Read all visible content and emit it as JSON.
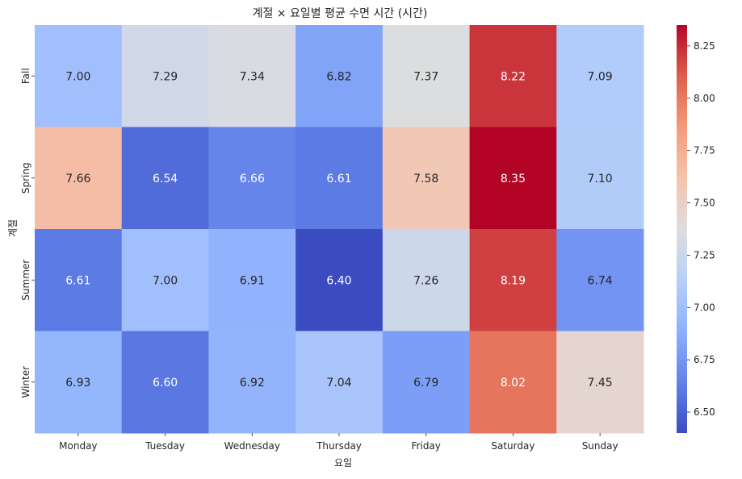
{
  "chart_data": {
    "type": "heatmap",
    "title": "계절 × 요일별 평균 수면 시간 (시간)",
    "xlabel": "요일",
    "ylabel": "계절",
    "x_categories": [
      "Monday",
      "Tuesday",
      "Wednesday",
      "Thursday",
      "Friday",
      "Saturday",
      "Sunday"
    ],
    "y_categories": [
      "Fall",
      "Spring",
      "Summer",
      "Winter"
    ],
    "values": [
      [
        7.0,
        7.29,
        7.34,
        6.82,
        7.37,
        8.22,
        7.09
      ],
      [
        7.66,
        6.54,
        6.66,
        6.61,
        7.58,
        8.35,
        7.1
      ],
      [
        6.61,
        7.0,
        6.91,
        6.4,
        7.26,
        8.19,
        6.74
      ],
      [
        6.93,
        6.6,
        6.92,
        7.04,
        6.79,
        8.02,
        7.45
      ]
    ],
    "cell_labels": [
      [
        "7.00",
        "7.29",
        "7.34",
        "6.82",
        "7.37",
        "8.22",
        "7.09"
      ],
      [
        "7.66",
        "6.54",
        "6.66",
        "6.61",
        "7.58",
        "8.35",
        "7.10"
      ],
      [
        "6.61",
        "7.00",
        "6.91",
        "6.40",
        "7.26",
        "8.19",
        "6.74"
      ],
      [
        "6.93",
        "6.60",
        "6.92",
        "7.04",
        "6.79",
        "8.02",
        "7.45"
      ]
    ],
    "colormap": "coolwarm",
    "vmin": 6.4,
    "vmax": 8.35,
    "colorbar_ticks": [
      "6.50",
      "6.75",
      "7.00",
      "7.25",
      "7.50",
      "7.75",
      "8.00",
      "8.25"
    ],
    "colorbar_tick_values": [
      6.5,
      6.75,
      7.0,
      7.25,
      7.5,
      7.75,
      8.0,
      8.25
    ],
    "grid": false
  }
}
